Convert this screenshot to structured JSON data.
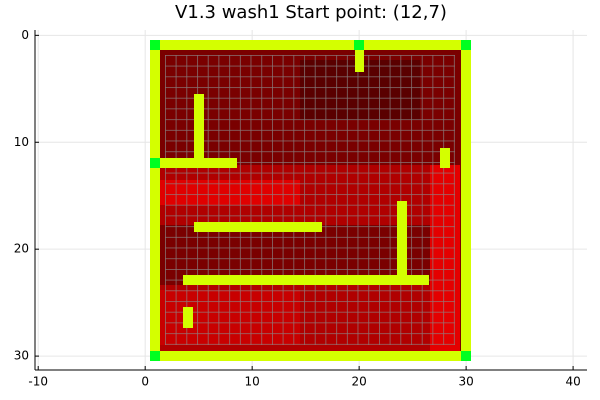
{
  "chart_data": {
    "type": "heatmap",
    "title": "V1.3 wash1 Start point: (12,7)",
    "xlim": [
      -10.3,
      41.3
    ],
    "xticks": [
      -10,
      0,
      10,
      20,
      30,
      40
    ],
    "ylim": [
      31.3,
      -0.5
    ],
    "yticks": [
      0,
      10,
      20,
      30
    ],
    "grid": true
  }
}
